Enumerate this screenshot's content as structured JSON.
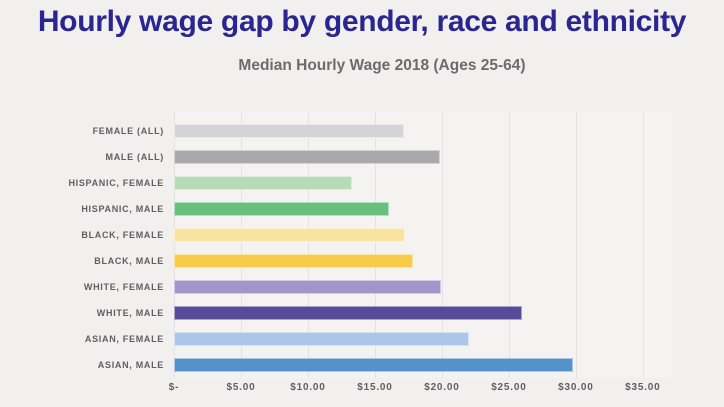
{
  "title": "Hourly wage gap by gender, race and ethnicity",
  "subtitle": "Median Hourly Wage 2018 (Ages 25-64)",
  "colors": {
    "page_background": "#f1f0ee",
    "plot_background": "#f4f3f1",
    "gridline": "#e4e3e1",
    "title_text": "#2b2591",
    "subtitle_text": "#6c6b6e",
    "label_text": "#5f5e63"
  },
  "chart_data": {
    "type": "bar",
    "orientation": "horizontal",
    "title": "Median Hourly Wage 2018 (Ages 25-64)",
    "categories": [
      "FEMALE (ALL)",
      "MALE (ALL)",
      "HISPANIC, FEMALE",
      "HISPANIC, MALE",
      "BLACK, FEMALE",
      "BLACK, MALE",
      "WHITE, FEMALE",
      "WHITE, MALE",
      "ASIAN, FEMALE",
      "ASIAN, MALE"
    ],
    "values": [
      17.15,
      19.85,
      13.3,
      16.05,
      17.25,
      17.85,
      19.9,
      25.95,
      22.0,
      29.8
    ],
    "bar_colors": [
      "#d4d4d8",
      "#a9a9ad",
      "#b9dab6",
      "#68c07c",
      "#fae3a0",
      "#f9cb4a",
      "#a295ca",
      "#564b9b",
      "#aac6e8",
      "#5591cb"
    ],
    "xlabel": "",
    "ylabel": "",
    "x_ticks": [
      "$-",
      "$5.00",
      "$10.00",
      "$15.00",
      "$20.00",
      "$25.00",
      "$30.00",
      "$35.00"
    ],
    "x_tick_values": [
      0,
      5,
      10,
      15,
      20,
      25,
      30,
      35
    ],
    "xlim": [
      0,
      37.25
    ],
    "grid": "vertical",
    "legend": "none"
  }
}
